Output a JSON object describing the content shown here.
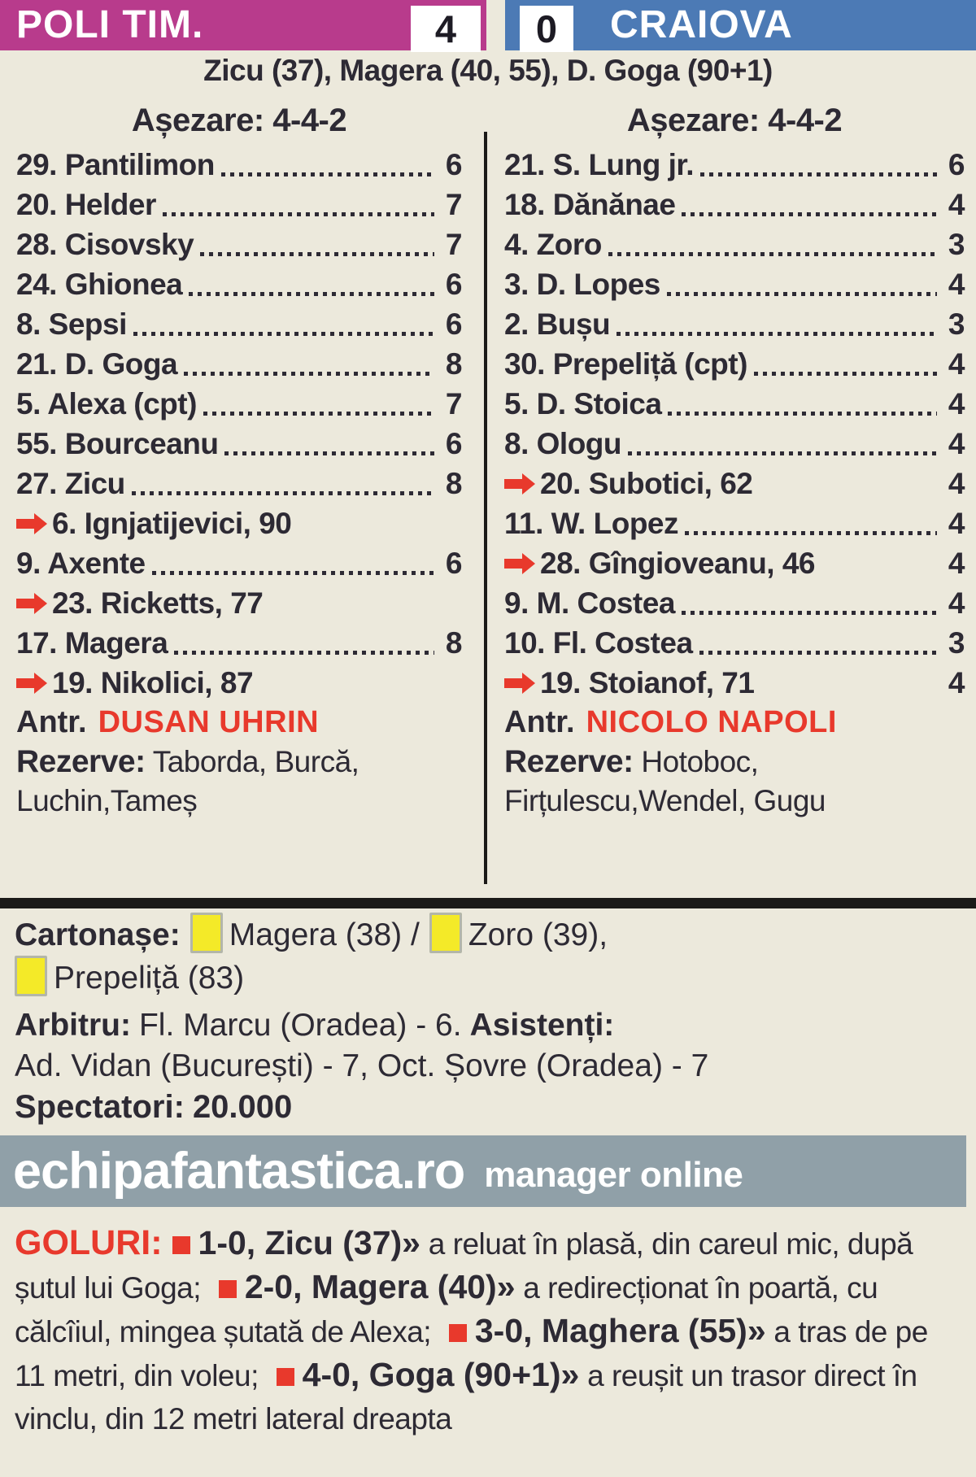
{
  "colors": {
    "home": "#b83b8c",
    "away": "#4c7ab5",
    "accent_red": "#e8392c",
    "card_yellow": "#f4ea28",
    "banner_bg": "#90a0a8",
    "background": "#ece9dc"
  },
  "header": {
    "home_team": "POLI TIM.",
    "away_team": "CRAIOVA",
    "home_score": "4",
    "away_score": "0"
  },
  "scorers_line": "Zicu (37), Magera (40, 55), D. Goga (90+1)",
  "home": {
    "formation_label": "Așezare: 4-4-2",
    "rows": [
      {
        "type": "player",
        "name": "29. Pantilimon",
        "rating": "6"
      },
      {
        "type": "player",
        "name": "20. Helder",
        "rating": "7"
      },
      {
        "type": "player",
        "name": "28. Cisovsky",
        "rating": "7"
      },
      {
        "type": "player",
        "name": "24. Ghionea",
        "rating": "6"
      },
      {
        "type": "player",
        "name": "8. Sepsi",
        "rating": "6"
      },
      {
        "type": "player",
        "name": "21. D. Goga",
        "rating": "8"
      },
      {
        "type": "player",
        "name": "5. Alexa (cpt)",
        "rating": "7"
      },
      {
        "type": "player",
        "name": "55. Bourceanu",
        "rating": "6"
      },
      {
        "type": "player",
        "name": "27. Zicu",
        "rating": "8"
      },
      {
        "type": "sub",
        "name": "6. Ignjatijevici, 90",
        "rating": ""
      },
      {
        "type": "player",
        "name": "9. Axente",
        "rating": "6"
      },
      {
        "type": "sub",
        "name": "23. Ricketts, 77",
        "rating": ""
      },
      {
        "type": "player",
        "name": "17. Magera",
        "rating": "8"
      },
      {
        "type": "sub",
        "name": "19. Nikolici, 87",
        "rating": ""
      }
    ],
    "coach_label": "Antr.",
    "coach": "DUSAN UHRIN",
    "reserves_label": "Rezerve:",
    "reserves": "Taborda, Burcă, Luchin,Tameș"
  },
  "away": {
    "formation_label": "Așezare: 4-4-2",
    "rows": [
      {
        "type": "player",
        "name": "21. S. Lung jr.",
        "rating": "6"
      },
      {
        "type": "player",
        "name": "18. Dănănae",
        "rating": "4"
      },
      {
        "type": "player",
        "name": "4. Zoro",
        "rating": "3"
      },
      {
        "type": "player",
        "name": "3. D. Lopes",
        "rating": "4"
      },
      {
        "type": "player",
        "name": "2. Bușu",
        "rating": "3"
      },
      {
        "type": "player",
        "name": "30. Prepeliță (cpt)",
        "rating": "4"
      },
      {
        "type": "player",
        "name": "5. D. Stoica",
        "rating": "4"
      },
      {
        "type": "player",
        "name": "8. Ologu",
        "rating": "4"
      },
      {
        "type": "sub",
        "name": "20. Subotici, 62",
        "rating": "4"
      },
      {
        "type": "player",
        "name": "11. W. Lopez",
        "rating": "4"
      },
      {
        "type": "sub",
        "name": "28. Gîngioveanu, 46",
        "rating": "4"
      },
      {
        "type": "player",
        "name": "9. M. Costea",
        "rating": "4"
      },
      {
        "type": "player",
        "name": "10. Fl. Costea",
        "rating": "3"
      },
      {
        "type": "sub",
        "name": "19. Stoianof, 71",
        "rating": "4"
      }
    ],
    "coach_label": "Antr.",
    "coach": "NICOLO NAPOLI",
    "reserves_label": "Rezerve:",
    "reserves": "Hotoboc, Firțulescu,Wendel, Gugu"
  },
  "cards": {
    "label": "Cartonașe:",
    "line1": [
      {
        "team": "home",
        "text": "Magera (38) /"
      },
      {
        "team": "away",
        "text": "Zoro (39),"
      }
    ],
    "line2": [
      {
        "team": "away",
        "text": "Prepeliță (83)"
      }
    ]
  },
  "officials": {
    "referee_label": "Arbitru:",
    "referee": "Fl. Marcu (Oradea) - 6.",
    "assistants_label": "Asistenți:",
    "assistants": "Ad. Vidan (București) - 7, Oct. Șovre (Oradea) - 7",
    "spectators_label": "Spectatori:",
    "spectators": "20.000"
  },
  "banner": {
    "site": "echipafantastica.ro",
    "tagline": "manager online"
  },
  "goals": {
    "label": "GOLURI:",
    "items": [
      {
        "score": "1-0, Zicu (37)»",
        "desc": "a reluat în plasă, din careul mic, după șutul lui Goga;"
      },
      {
        "score": "2-0, Magera (40)»",
        "desc": "a redirecționat în poartă, cu călcîiul, mingea șutată de Alexa;"
      },
      {
        "score": "3-0, Maghera (55)»",
        "desc": "a tras de pe 11 metri, din voleu;"
      },
      {
        "score": "4-0, Goga (90+1)»",
        "desc": "a reușit un trasor direct în vinclu, din 12 metri lateral dreapta"
      }
    ]
  }
}
